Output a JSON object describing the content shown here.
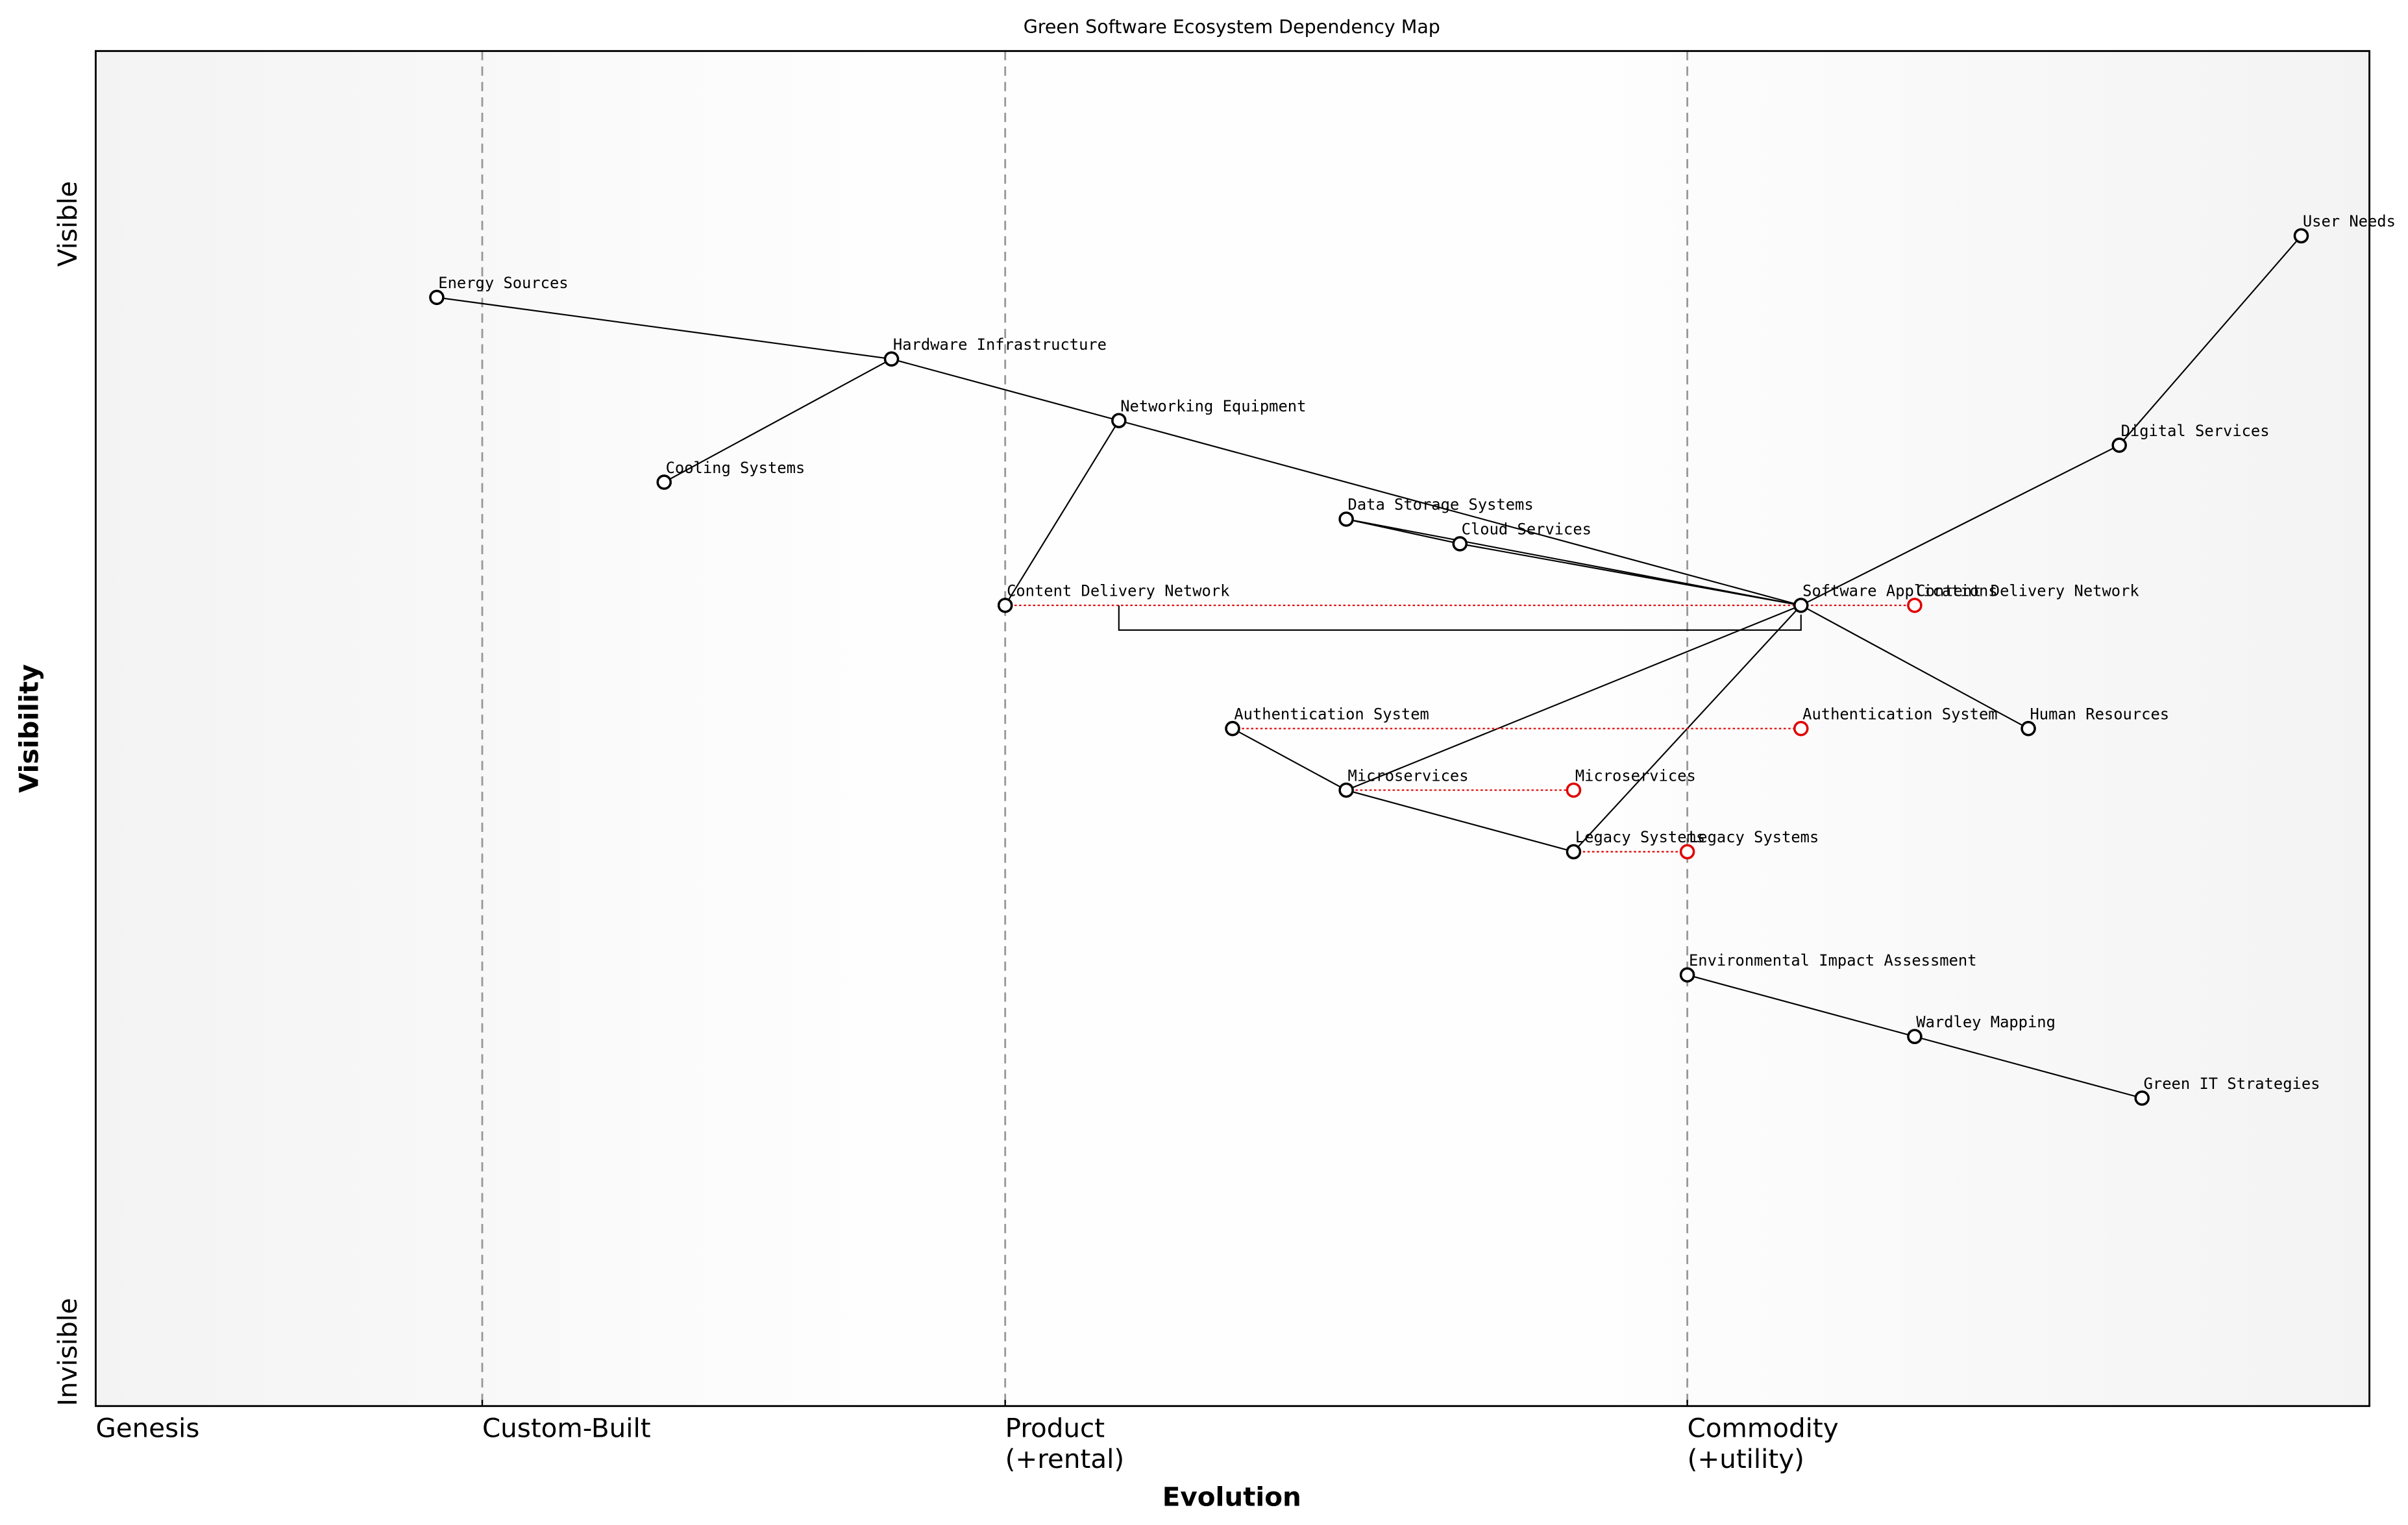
{
  "chart_data": {
    "type": "wardley",
    "title": "Green Software Ecosystem Dependency Map",
    "xlabel": "Evolution",
    "ylabel": "Visibility",
    "visibility_labels": [
      "Visible",
      "Invisible"
    ],
    "xlim": [
      0,
      1
    ],
    "ylim": [
      0,
      1.1
    ],
    "xticks": [
      {
        "value": 0,
        "label": "Genesis"
      },
      {
        "value": 0.17,
        "label": "Custom-Built"
      },
      {
        "value": 0.4,
        "label": "Product\n(+rental)"
      },
      {
        "value": 0.7,
        "label": "Commodity\n(+utility)"
      }
    ],
    "stage_lines": [
      0.17,
      0.4,
      0.7
    ],
    "components": [
      {
        "name": "User Needs",
        "x": 0.97,
        "y": 0.95
      },
      {
        "name": "Digital Services",
        "x": 0.89,
        "y": 0.78
      },
      {
        "name": "Software Applications",
        "x": 0.75,
        "y": 0.65
      },
      {
        "name": "Hardware Infrastructure",
        "x": 0.35,
        "y": 0.85
      },
      {
        "name": "Energy Sources",
        "x": 0.15,
        "y": 0.9
      },
      {
        "name": "Cooling Systems",
        "x": 0.25,
        "y": 0.75
      },
      {
        "name": "Networking Equipment",
        "x": 0.45,
        "y": 0.8
      },
      {
        "name": "Data Storage Systems",
        "x": 0.55,
        "y": 0.72
      },
      {
        "name": "Cloud Services",
        "x": 0.6,
        "y": 0.7
      },
      {
        "name": "Content Delivery Network",
        "x": 0.4,
        "y": 0.65
      },
      {
        "name": "Human Resources",
        "x": 0.85,
        "y": 0.55
      },
      {
        "name": "Authentication System",
        "x": 0.5,
        "y": 0.55
      },
      {
        "name": "Microservices",
        "x": 0.55,
        "y": 0.5
      },
      {
        "name": "Legacy Systems",
        "x": 0.65,
        "y": 0.45
      },
      {
        "name": "Environmental Impact Assessment",
        "x": 0.7,
        "y": 0.35
      },
      {
        "name": "Wardley Mapping",
        "x": 0.8,
        "y": 0.3
      },
      {
        "name": "Green IT Strategies",
        "x": 0.9,
        "y": 0.25
      }
    ],
    "links": [
      [
        0,
        1
      ],
      [
        1,
        2
      ],
      [
        2,
        10
      ],
      [
        2,
        12
      ],
      [
        2,
        13
      ],
      [
        2,
        7
      ],
      [
        2,
        8
      ],
      [
        2,
        6
      ],
      [
        7,
        8
      ],
      [
        6,
        3
      ],
      [
        6,
        9
      ],
      [
        3,
        4
      ],
      [
        3,
        5
      ],
      [
        11,
        12
      ],
      [
        12,
        13
      ],
      [
        14,
        15
      ],
      [
        15,
        16
      ]
    ],
    "evolutions": [
      {
        "component": 9,
        "x": 0.8
      },
      {
        "component": 11,
        "x": 0.75
      },
      {
        "component": 12,
        "x": 0.65
      },
      {
        "component": 13,
        "x": 0.7
      }
    ],
    "pipelines": [
      {
        "component": 2,
        "x": [
          0.45,
          0.75
        ]
      }
    ],
    "evolve_color": "#e00000",
    "node_color": "#000000"
  }
}
